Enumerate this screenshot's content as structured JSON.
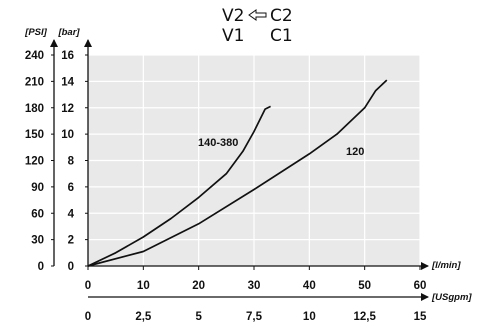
{
  "header": {
    "v2": "V2",
    "c2": "C2",
    "v1": "V1",
    "c1": "C1",
    "arrow_icon": "left-arrow-icon"
  },
  "chart_data": {
    "type": "line",
    "x_units": {
      "lpm": "[l/min]",
      "usgpm": "[USgpm]"
    },
    "y_units": {
      "psi": "[PSI]",
      "bar": "[bar]"
    },
    "xlim": [
      0,
      60
    ],
    "ylim": [
      0,
      16
    ],
    "x_ticks": [
      "0",
      "10",
      "20",
      "30",
      "40",
      "50",
      "60"
    ],
    "x2_ticks": [
      "0",
      "2,5",
      "5",
      "7,5",
      "10",
      "12,5",
      "15"
    ],
    "y_bar_ticks": [
      "0",
      "2",
      "4",
      "6",
      "8",
      "10",
      "12",
      "14",
      "16"
    ],
    "y_psi_ticks": [
      "0",
      "30",
      "60",
      "90",
      "120",
      "150",
      "180",
      "210",
      "240"
    ],
    "grid": true,
    "series": [
      {
        "name": "140-380",
        "x": [
          0,
          5,
          10,
          15,
          20,
          25,
          28,
          30,
          32,
          33
        ],
        "y": [
          0,
          1.0,
          2.2,
          3.6,
          5.2,
          7.0,
          8.7,
          10.2,
          11.9,
          12.1
        ]
      },
      {
        "name": "120",
        "x": [
          0,
          10,
          20,
          30,
          40,
          45,
          50,
          52,
          54
        ],
        "y": [
          0,
          1.1,
          3.2,
          5.8,
          8.5,
          10.0,
          12.0,
          13.3,
          14.1
        ]
      }
    ]
  }
}
